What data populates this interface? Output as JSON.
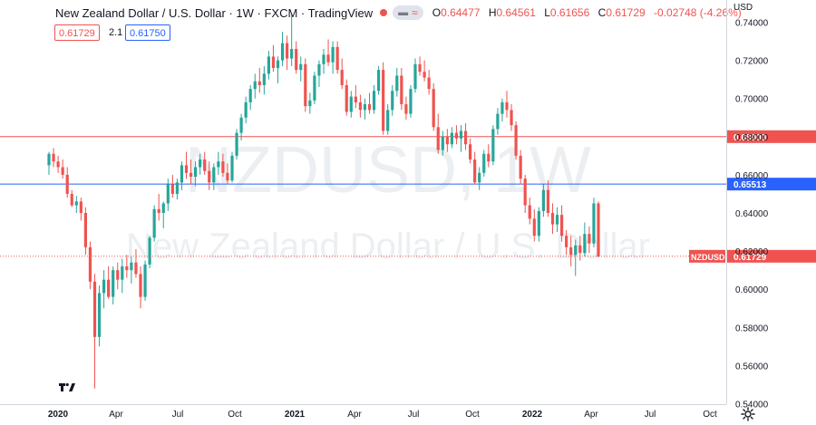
{
  "header": {
    "symbol_title": "New Zealand Dollar / U.S. Dollar · 1W · FXCM · TradingView",
    "open_label": "O",
    "open": "0.64477",
    "high_label": "H",
    "high": "0.64561",
    "low_label": "L",
    "low": "0.61656",
    "close_label": "C",
    "close": "0.61729",
    "change": "-0.02748 (-4.26%)",
    "status_dot_color": "#ef5350",
    "visibility_icon": "eye-icon",
    "indicator_icon": "wave-icon"
  },
  "trade": {
    "sell_price": "0.61729",
    "spread": "2.1",
    "buy_price": "0.61750"
  },
  "price_axis": {
    "currency": "USD",
    "ticks": [
      "0.74000",
      "0.72000",
      "0.70000",
      "0.68000",
      "0.66000",
      "0.64000",
      "0.62000",
      "0.60000",
      "0.58000",
      "0.56000",
      "0.54000"
    ]
  },
  "time_axis": {
    "labels": [
      "2020",
      "Apr",
      "Jul",
      "Oct",
      "2021",
      "Apr",
      "Jul",
      "Oct",
      "2022",
      "Apr",
      "Jul",
      "Oct"
    ]
  },
  "watermark": {
    "symbol": "NZDUSD, 1W",
    "description": "New Zealand Dollar / U.S. Dollar"
  },
  "colors": {
    "up": "#26a69a",
    "down": "#ef5350",
    "line_red": "#ef5350",
    "line_blue": "#2962ff",
    "price_line": "#ef5350"
  },
  "chart_data": {
    "type": "candlestick",
    "symbol": "NZDUSD",
    "interval": "1W",
    "ylim": [
      0.535,
      0.745
    ],
    "horizontal_lines": [
      {
        "price": 0.68,
        "label": "0.68000",
        "color": "#ef5350"
      },
      {
        "price": 0.65513,
        "label": "0.65513",
        "color": "#2962ff"
      }
    ],
    "last_price": {
      "price": 0.61729,
      "label": "0.61729",
      "tag": "NZDUSD"
    },
    "candles": [
      [
        0.665,
        0.672,
        0.66,
        0.671
      ],
      [
        0.671,
        0.674,
        0.664,
        0.667
      ],
      [
        0.667,
        0.67,
        0.661,
        0.664
      ],
      [
        0.664,
        0.668,
        0.658,
        0.66
      ],
      [
        0.66,
        0.664,
        0.648,
        0.65
      ],
      [
        0.65,
        0.652,
        0.643,
        0.644
      ],
      [
        0.644,
        0.649,
        0.64,
        0.646
      ],
      [
        0.646,
        0.648,
        0.636,
        0.64
      ],
      [
        0.64,
        0.643,
        0.618,
        0.622
      ],
      [
        0.622,
        0.625,
        0.6,
        0.604
      ],
      [
        0.604,
        0.608,
        0.548,
        0.575
      ],
      [
        0.575,
        0.602,
        0.57,
        0.598
      ],
      [
        0.598,
        0.61,
        0.59,
        0.605
      ],
      [
        0.605,
        0.612,
        0.595,
        0.596
      ],
      [
        0.596,
        0.612,
        0.592,
        0.61
      ],
      [
        0.61,
        0.614,
        0.6,
        0.605
      ],
      [
        0.605,
        0.616,
        0.598,
        0.612
      ],
      [
        0.612,
        0.618,
        0.606,
        0.61
      ],
      [
        0.61,
        0.617,
        0.603,
        0.614
      ],
      [
        0.614,
        0.621,
        0.606,
        0.608
      ],
      [
        0.608,
        0.612,
        0.59,
        0.596
      ],
      [
        0.596,
        0.615,
        0.594,
        0.613
      ],
      [
        0.613,
        0.628,
        0.611,
        0.627
      ],
      [
        0.627,
        0.644,
        0.625,
        0.642
      ],
      [
        0.642,
        0.65,
        0.636,
        0.64
      ],
      [
        0.64,
        0.646,
        0.632,
        0.645
      ],
      [
        0.645,
        0.658,
        0.641,
        0.655
      ],
      [
        0.655,
        0.66,
        0.648,
        0.65
      ],
      [
        0.65,
        0.658,
        0.647,
        0.656
      ],
      [
        0.656,
        0.667,
        0.652,
        0.665
      ],
      [
        0.665,
        0.672,
        0.658,
        0.661
      ],
      [
        0.661,
        0.668,
        0.655,
        0.659
      ],
      [
        0.659,
        0.667,
        0.654,
        0.664
      ],
      [
        0.664,
        0.671,
        0.66,
        0.668
      ],
      [
        0.668,
        0.672,
        0.66,
        0.662
      ],
      [
        0.662,
        0.667,
        0.652,
        0.656
      ],
      [
        0.656,
        0.666,
        0.652,
        0.664
      ],
      [
        0.664,
        0.672,
        0.66,
        0.667
      ],
      [
        0.667,
        0.671,
        0.659,
        0.661
      ],
      [
        0.661,
        0.666,
        0.655,
        0.657
      ],
      [
        0.657,
        0.672,
        0.656,
        0.67
      ],
      [
        0.67,
        0.684,
        0.668,
        0.682
      ],
      [
        0.682,
        0.692,
        0.678,
        0.69
      ],
      [
        0.69,
        0.701,
        0.687,
        0.698
      ],
      [
        0.698,
        0.707,
        0.694,
        0.705
      ],
      [
        0.705,
        0.713,
        0.7,
        0.709
      ],
      [
        0.709,
        0.716,
        0.703,
        0.707
      ],
      [
        0.707,
        0.717,
        0.702,
        0.713
      ],
      [
        0.713,
        0.725,
        0.71,
        0.722
      ],
      [
        0.722,
        0.728,
        0.714,
        0.716
      ],
      [
        0.716,
        0.722,
        0.708,
        0.72
      ],
      [
        0.72,
        0.735,
        0.717,
        0.729
      ],
      [
        0.729,
        0.733,
        0.715,
        0.721
      ],
      [
        0.721,
        0.744,
        0.717,
        0.726
      ],
      [
        0.726,
        0.73,
        0.713,
        0.715
      ],
      [
        0.715,
        0.722,
        0.709,
        0.718
      ],
      [
        0.718,
        0.721,
        0.693,
        0.696
      ],
      [
        0.696,
        0.703,
        0.692,
        0.699
      ],
      [
        0.699,
        0.714,
        0.697,
        0.712
      ],
      [
        0.712,
        0.72,
        0.706,
        0.718
      ],
      [
        0.718,
        0.726,
        0.713,
        0.723
      ],
      [
        0.723,
        0.731,
        0.717,
        0.719
      ],
      [
        0.719,
        0.73,
        0.713,
        0.727
      ],
      [
        0.727,
        0.73,
        0.713,
        0.715
      ],
      [
        0.715,
        0.721,
        0.705,
        0.707
      ],
      [
        0.707,
        0.71,
        0.691,
        0.693
      ],
      [
        0.693,
        0.704,
        0.69,
        0.701
      ],
      [
        0.701,
        0.707,
        0.695,
        0.698
      ],
      [
        0.698,
        0.702,
        0.69,
        0.694
      ],
      [
        0.694,
        0.7,
        0.689,
        0.697
      ],
      [
        0.697,
        0.703,
        0.692,
        0.694
      ],
      [
        0.694,
        0.707,
        0.692,
        0.704
      ],
      [
        0.704,
        0.717,
        0.702,
        0.715
      ],
      [
        0.715,
        0.719,
        0.681,
        0.683
      ],
      [
        0.683,
        0.697,
        0.681,
        0.694
      ],
      [
        0.694,
        0.707,
        0.691,
        0.704
      ],
      [
        0.704,
        0.716,
        0.701,
        0.712
      ],
      [
        0.712,
        0.716,
        0.694,
        0.697
      ],
      [
        0.697,
        0.701,
        0.689,
        0.692
      ],
      [
        0.692,
        0.707,
        0.69,
        0.705
      ],
      [
        0.705,
        0.721,
        0.703,
        0.718
      ],
      [
        0.718,
        0.722,
        0.712,
        0.714
      ],
      [
        0.714,
        0.72,
        0.709,
        0.711
      ],
      [
        0.711,
        0.715,
        0.702,
        0.705
      ],
      [
        0.705,
        0.708,
        0.683,
        0.685
      ],
      [
        0.685,
        0.692,
        0.671,
        0.673
      ],
      [
        0.673,
        0.683,
        0.67,
        0.68
      ],
      [
        0.68,
        0.684,
        0.672,
        0.676
      ],
      [
        0.676,
        0.685,
        0.674,
        0.682
      ],
      [
        0.682,
        0.686,
        0.676,
        0.679
      ],
      [
        0.679,
        0.686,
        0.672,
        0.683
      ],
      [
        0.683,
        0.687,
        0.673,
        0.676
      ],
      [
        0.676,
        0.679,
        0.666,
        0.668
      ],
      [
        0.668,
        0.672,
        0.655,
        0.656
      ],
      [
        0.656,
        0.664,
        0.652,
        0.661
      ],
      [
        0.661,
        0.673,
        0.659,
        0.671
      ],
      [
        0.671,
        0.676,
        0.664,
        0.667
      ],
      [
        0.667,
        0.686,
        0.665,
        0.684
      ],
      [
        0.684,
        0.695,
        0.681,
        0.692
      ],
      [
        0.692,
        0.7,
        0.688,
        0.698
      ],
      [
        0.698,
        0.704,
        0.69,
        0.694
      ],
      [
        0.694,
        0.697,
        0.683,
        0.686
      ],
      [
        0.686,
        0.688,
        0.668,
        0.67
      ],
      [
        0.67,
        0.673,
        0.655,
        0.658
      ],
      [
        0.658,
        0.66,
        0.64,
        0.644
      ],
      [
        0.644,
        0.648,
        0.634,
        0.637
      ],
      [
        0.637,
        0.642,
        0.625,
        0.628
      ],
      [
        0.628,
        0.643,
        0.625,
        0.641
      ],
      [
        0.641,
        0.655,
        0.638,
        0.652
      ],
      [
        0.652,
        0.657,
        0.638,
        0.64
      ],
      [
        0.64,
        0.645,
        0.629,
        0.634
      ],
      [
        0.634,
        0.643,
        0.63,
        0.639
      ],
      [
        0.639,
        0.644,
        0.625,
        0.628
      ],
      [
        0.628,
        0.631,
        0.618,
        0.622
      ],
      [
        0.622,
        0.628,
        0.612,
        0.618
      ],
      [
        0.618,
        0.626,
        0.607,
        0.623
      ],
      [
        0.623,
        0.628,
        0.615,
        0.619
      ],
      [
        0.619,
        0.635,
        0.617,
        0.629
      ],
      [
        0.629,
        0.633,
        0.619,
        0.624
      ],
      [
        0.624,
        0.648,
        0.622,
        0.645
      ],
      [
        0.645,
        0.646,
        0.617,
        0.617
      ]
    ]
  }
}
